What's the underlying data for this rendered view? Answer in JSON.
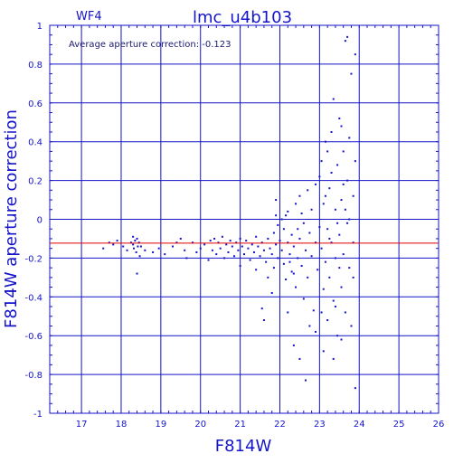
{
  "chart_data": {
    "type": "scatter",
    "title": "lmc_u4b103",
    "chip_label": "WF4",
    "annotation": "Average aperture correction: -0.123",
    "xlabel": "F814W",
    "ylabel": "F814W aperture correction",
    "xlim": [
      16.2,
      26.0
    ],
    "ylim": [
      -1.0,
      1.0
    ],
    "xticks": [
      17,
      18,
      19,
      20,
      21,
      22,
      23,
      24,
      25,
      26
    ],
    "yticks": [
      -1,
      -0.8,
      -0.6,
      -0.4,
      -0.2,
      0,
      0.2,
      0.4,
      0.6,
      0.8,
      1
    ],
    "xtick_labels": [
      "17",
      "18",
      "19",
      "20",
      "21",
      "22",
      "23",
      "24",
      "25",
      "26"
    ],
    "ytick_labels": [
      "-1",
      "-0.8",
      "-0.6",
      "-0.4",
      "-0.2",
      "0",
      "0.2",
      "0.4",
      "0.6",
      "0.8",
      "1"
    ],
    "grid": true,
    "reference_line": {
      "y": -0.123,
      "color": "#e00000"
    },
    "colors": {
      "axes": "#1414c8",
      "points": "#1414c8",
      "reference": "#e00000"
    },
    "series": [
      {
        "points": [
          [
            17.55,
            -0.15
          ],
          [
            17.7,
            -0.12
          ],
          [
            17.8,
            -0.13
          ],
          [
            17.9,
            -0.11
          ],
          [
            18.05,
            -0.14
          ],
          [
            18.15,
            -0.16
          ],
          [
            18.25,
            -0.12
          ],
          [
            18.3,
            -0.09
          ],
          [
            18.3,
            -0.13
          ],
          [
            18.32,
            -0.15
          ],
          [
            18.35,
            -0.11
          ],
          [
            18.38,
            -0.17
          ],
          [
            18.4,
            -0.1
          ],
          [
            18.42,
            -0.14
          ],
          [
            18.45,
            -0.12
          ],
          [
            18.47,
            -0.19
          ],
          [
            18.5,
            -0.14
          ],
          [
            18.4,
            -0.28
          ],
          [
            18.6,
            -0.16
          ],
          [
            18.8,
            -0.17
          ],
          [
            18.95,
            -0.15
          ],
          [
            19.1,
            -0.18
          ],
          [
            19.3,
            -0.14
          ],
          [
            19.4,
            -0.12
          ],
          [
            19.5,
            -0.1
          ],
          [
            19.6,
            -0.16
          ],
          [
            19.65,
            -0.2
          ],
          [
            19.8,
            -0.12
          ],
          [
            19.9,
            -0.17
          ],
          [
            20.0,
            -0.15
          ],
          [
            20.1,
            -0.13
          ],
          [
            20.2,
            -0.21
          ],
          [
            20.25,
            -0.11
          ],
          [
            20.3,
            -0.16
          ],
          [
            20.35,
            -0.1
          ],
          [
            20.4,
            -0.18
          ],
          [
            20.45,
            -0.12
          ],
          [
            20.5,
            -0.15
          ],
          [
            20.55,
            -0.09
          ],
          [
            20.6,
            -0.2
          ],
          [
            20.65,
            -0.13
          ],
          [
            20.7,
            -0.17
          ],
          [
            20.75,
            -0.11
          ],
          [
            20.8,
            -0.14
          ],
          [
            20.85,
            -0.19
          ],
          [
            20.9,
            -0.12
          ],
          [
            20.95,
            -0.16
          ],
          [
            21.0,
            -0.1
          ],
          [
            21.0,
            -0.24
          ],
          [
            21.05,
            -0.14
          ],
          [
            21.1,
            -0.18
          ],
          [
            21.15,
            -0.11
          ],
          [
            21.2,
            -0.15
          ],
          [
            21.25,
            -0.21
          ],
          [
            21.3,
            -0.13
          ],
          [
            21.35,
            -0.17
          ],
          [
            21.4,
            -0.09
          ],
          [
            21.4,
            -0.26
          ],
          [
            21.45,
            -0.14
          ],
          [
            21.5,
            -0.19
          ],
          [
            21.55,
            -0.12
          ],
          [
            21.6,
            -0.16
          ],
          [
            21.65,
            -0.22
          ],
          [
            21.7,
            -0.1
          ],
          [
            21.7,
            -0.3
          ],
          [
            21.75,
            -0.15
          ],
          [
            21.8,
            -0.18
          ],
          [
            21.85,
            -0.07
          ],
          [
            21.85,
            -0.25
          ],
          [
            21.9,
            -0.13
          ],
          [
            21.95,
            -0.2
          ],
          [
            22.0,
            -0.11
          ],
          [
            21.55,
            -0.46
          ],
          [
            21.6,
            -0.52
          ],
          [
            21.8,
            -0.38
          ],
          [
            21.95,
            -0.03
          ],
          [
            21.9,
            0.02
          ],
          [
            21.9,
            0.1
          ],
          [
            22.05,
            -0.16
          ],
          [
            22.1,
            -0.23
          ],
          [
            22.1,
            -0.05
          ],
          [
            22.15,
            -0.31
          ],
          [
            22.2,
            -0.12
          ],
          [
            22.2,
            0.04
          ],
          [
            22.25,
            -0.18
          ],
          [
            22.3,
            -0.27
          ],
          [
            22.3,
            -0.08
          ],
          [
            22.35,
            -0.14
          ],
          [
            22.4,
            0.08
          ],
          [
            22.4,
            -0.35
          ],
          [
            22.45,
            -0.2
          ],
          [
            22.5,
            -0.1
          ],
          [
            22.5,
            0.12
          ],
          [
            22.55,
            -0.24
          ],
          [
            22.6,
            -0.41
          ],
          [
            22.6,
            -0.02
          ],
          [
            22.65,
            -0.16
          ],
          [
            22.7,
            0.15
          ],
          [
            22.7,
            -0.3
          ],
          [
            22.75,
            -0.07
          ],
          [
            22.8,
            -0.19
          ],
          [
            22.8,
            0.05
          ],
          [
            22.85,
            -0.47
          ],
          [
            22.9,
            -0.12
          ],
          [
            22.9,
            0.18
          ],
          [
            22.95,
            -0.26
          ],
          [
            23.0,
            -0.04
          ],
          [
            23.0,
            0.22
          ],
          [
            22.35,
            -0.65
          ],
          [
            22.5,
            -0.72
          ],
          [
            22.65,
            -0.83
          ],
          [
            22.75,
            -0.55
          ],
          [
            22.9,
            -0.58
          ],
          [
            22.2,
            -0.48
          ],
          [
            22.05,
            0.0
          ],
          [
            22.15,
            0.02
          ],
          [
            22.45,
            -0.05
          ],
          [
            22.55,
            0.03
          ],
          [
            22.25,
            -0.22
          ],
          [
            22.35,
            -0.28
          ],
          [
            23.05,
            -0.15
          ],
          [
            23.05,
            0.3
          ],
          [
            23.1,
            -0.36
          ],
          [
            23.1,
            0.08
          ],
          [
            23.15,
            -0.22
          ],
          [
            23.15,
            0.4
          ],
          [
            23.2,
            -0.05
          ],
          [
            23.2,
            -0.52
          ],
          [
            23.25,
            0.16
          ],
          [
            23.25,
            -0.3
          ],
          [
            23.3,
            0.45
          ],
          [
            23.3,
            -0.12
          ],
          [
            23.35,
            0.62
          ],
          [
            23.35,
            -0.42
          ],
          [
            23.4,
            0.05
          ],
          [
            23.4,
            -0.2
          ],
          [
            23.45,
            0.28
          ],
          [
            23.45,
            -0.6
          ],
          [
            23.5,
            -0.08
          ],
          [
            23.5,
            0.52
          ],
          [
            23.55,
            0.1
          ],
          [
            23.55,
            -0.35
          ],
          [
            23.6,
            0.35
          ],
          [
            23.6,
            -0.18
          ],
          [
            23.65,
            0.92
          ],
          [
            23.65,
            -0.48
          ],
          [
            23.7,
            0.2
          ],
          [
            23.7,
            -0.02
          ],
          [
            23.75,
            -0.25
          ],
          [
            23.75,
            0.42
          ],
          [
            23.8,
            0.75
          ],
          [
            23.8,
            -0.55
          ],
          [
            23.85,
            0.12
          ],
          [
            23.85,
            -0.12
          ],
          [
            23.9,
            0.85
          ],
          [
            23.9,
            0.3
          ],
          [
            23.7,
            0.94
          ],
          [
            23.9,
            -0.87
          ],
          [
            23.1,
            -0.68
          ],
          [
            23.35,
            -0.72
          ],
          [
            23.55,
            -0.62
          ],
          [
            23.05,
            -0.48
          ],
          [
            23.15,
            0.12
          ],
          [
            23.25,
            -0.1
          ],
          [
            23.45,
            -0.02
          ],
          [
            23.65,
            0.05
          ],
          [
            23.85,
            -0.3
          ],
          [
            23.5,
            -0.25
          ],
          [
            23.3,
            0.24
          ],
          [
            23.6,
            0.18
          ],
          [
            23.4,
            -0.45
          ],
          [
            23.75,
            0.0
          ],
          [
            23.2,
            0.35
          ],
          [
            23.55,
            0.48
          ]
        ]
      }
    ]
  }
}
